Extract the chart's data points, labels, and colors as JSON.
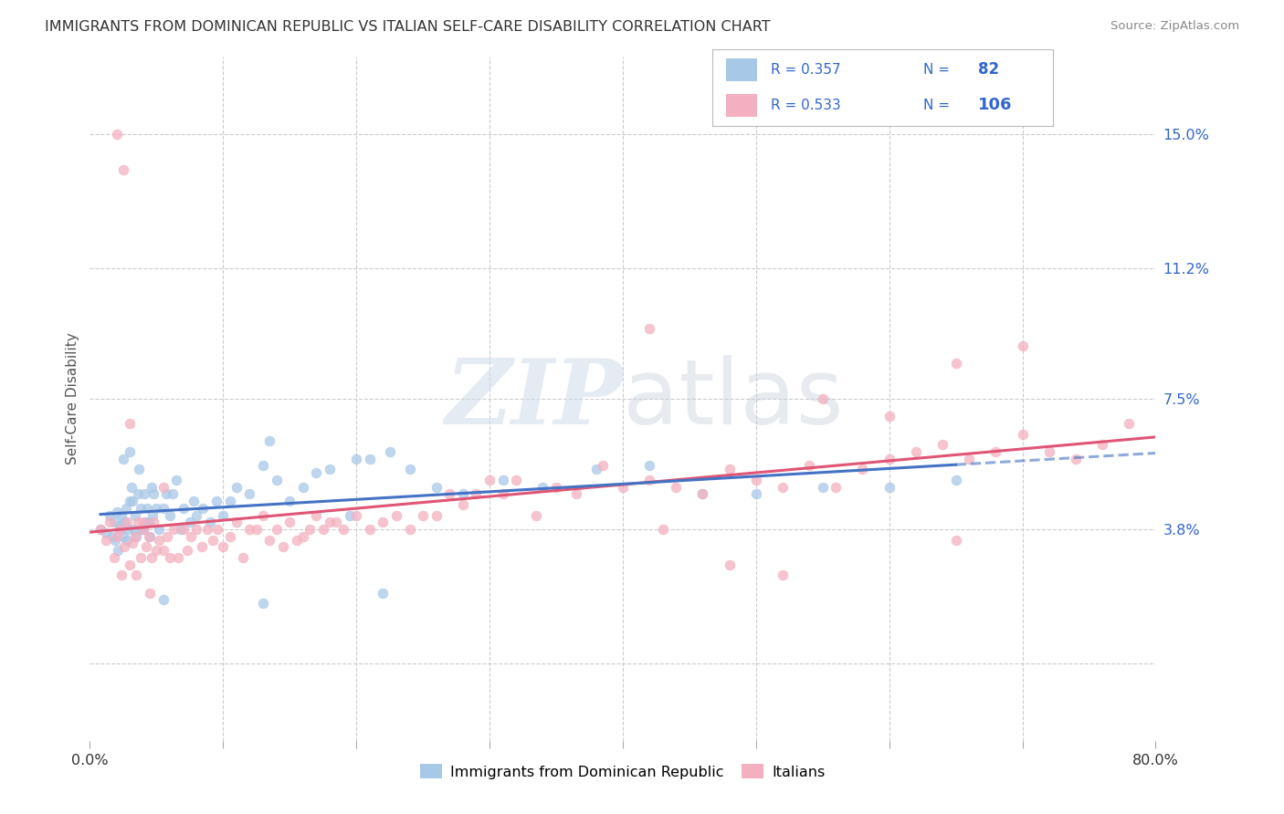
{
  "title": "IMMIGRANTS FROM DOMINICAN REPUBLIC VS ITALIAN SELF-CARE DISABILITY CORRELATION CHART",
  "source": "Source: ZipAtlas.com",
  "ylabel": "Self-Care Disability",
  "yticks": [
    0.0,
    0.038,
    0.075,
    0.112,
    0.15
  ],
  "ytick_labels": [
    "",
    "3.8%",
    "7.5%",
    "11.2%",
    "15.0%"
  ],
  "xlim": [
    0.0,
    0.8
  ],
  "ylim": [
    -0.022,
    0.172
  ],
  "legend_label1": "Immigrants from Dominican Republic",
  "legend_label2": "Italians",
  "R1": 0.357,
  "N1": 82,
  "R2": 0.533,
  "N2": 106,
  "color1": "#a8c8e8",
  "color2": "#f4b0c0",
  "line_color1": "#4472c4",
  "line_color2": "#e05575",
  "watermark_zip": "ZIP",
  "watermark_atlas": "atlas",
  "background": "#ffffff",
  "scatter1_x": [
    0.008,
    0.012,
    0.015,
    0.017,
    0.018,
    0.019,
    0.02,
    0.021,
    0.022,
    0.023,
    0.024,
    0.025,
    0.026,
    0.027,
    0.028,
    0.029,
    0.03,
    0.031,
    0.032,
    0.033,
    0.034,
    0.035,
    0.036,
    0.037,
    0.038,
    0.039,
    0.04,
    0.041,
    0.042,
    0.043,
    0.044,
    0.045,
    0.046,
    0.047,
    0.048,
    0.05,
    0.052,
    0.055,
    0.057,
    0.06,
    0.062,
    0.065,
    0.068,
    0.07,
    0.075,
    0.078,
    0.08,
    0.085,
    0.09,
    0.095,
    0.1,
    0.105,
    0.11,
    0.12,
    0.13,
    0.135,
    0.14,
    0.15,
    0.16,
    0.17,
    0.18,
    0.195,
    0.21,
    0.225,
    0.24,
    0.26,
    0.28,
    0.31,
    0.34,
    0.38,
    0.42,
    0.46,
    0.5,
    0.55,
    0.6,
    0.65,
    0.22,
    0.055,
    0.03,
    0.025,
    0.2,
    0.13
  ],
  "scatter1_y": [
    0.038,
    0.037,
    0.042,
    0.036,
    0.04,
    0.035,
    0.043,
    0.032,
    0.039,
    0.038,
    0.042,
    0.036,
    0.04,
    0.044,
    0.035,
    0.038,
    0.046,
    0.05,
    0.046,
    0.038,
    0.042,
    0.036,
    0.048,
    0.055,
    0.044,
    0.038,
    0.038,
    0.048,
    0.04,
    0.044,
    0.04,
    0.036,
    0.05,
    0.042,
    0.048,
    0.044,
    0.038,
    0.044,
    0.048,
    0.042,
    0.048,
    0.052,
    0.038,
    0.044,
    0.04,
    0.046,
    0.042,
    0.044,
    0.04,
    0.046,
    0.042,
    0.046,
    0.05,
    0.048,
    0.056,
    0.063,
    0.052,
    0.046,
    0.05,
    0.054,
    0.055,
    0.042,
    0.058,
    0.06,
    0.055,
    0.05,
    0.048,
    0.052,
    0.05,
    0.055,
    0.056,
    0.048,
    0.048,
    0.05,
    0.05,
    0.052,
    0.02,
    0.018,
    0.06,
    0.058,
    0.058,
    0.017
  ],
  "scatter2_x": [
    0.008,
    0.012,
    0.015,
    0.018,
    0.02,
    0.022,
    0.024,
    0.026,
    0.028,
    0.03,
    0.032,
    0.034,
    0.036,
    0.038,
    0.04,
    0.042,
    0.044,
    0.046,
    0.048,
    0.05,
    0.052,
    0.055,
    0.058,
    0.06,
    0.063,
    0.066,
    0.07,
    0.073,
    0.076,
    0.08,
    0.084,
    0.088,
    0.092,
    0.096,
    0.1,
    0.105,
    0.11,
    0.115,
    0.12,
    0.125,
    0.13,
    0.135,
    0.14,
    0.145,
    0.15,
    0.155,
    0.16,
    0.165,
    0.17,
    0.175,
    0.18,
    0.185,
    0.19,
    0.2,
    0.21,
    0.22,
    0.23,
    0.24,
    0.25,
    0.26,
    0.27,
    0.28,
    0.29,
    0.3,
    0.31,
    0.32,
    0.335,
    0.35,
    0.365,
    0.385,
    0.4,
    0.42,
    0.44,
    0.46,
    0.48,
    0.5,
    0.52,
    0.54,
    0.56,
    0.58,
    0.6,
    0.62,
    0.64,
    0.66,
    0.68,
    0.7,
    0.72,
    0.74,
    0.76,
    0.78,
    0.55,
    0.6,
    0.65,
    0.7,
    0.48,
    0.52,
    0.43,
    0.02,
    0.025,
    0.03,
    0.035,
    0.04,
    0.045,
    0.055,
    0.42,
    0.65
  ],
  "scatter2_y": [
    0.038,
    0.035,
    0.04,
    0.03,
    0.036,
    0.038,
    0.025,
    0.033,
    0.04,
    0.028,
    0.034,
    0.036,
    0.04,
    0.03,
    0.038,
    0.033,
    0.036,
    0.03,
    0.04,
    0.032,
    0.035,
    0.032,
    0.036,
    0.03,
    0.038,
    0.03,
    0.038,
    0.032,
    0.036,
    0.038,
    0.033,
    0.038,
    0.035,
    0.038,
    0.033,
    0.036,
    0.04,
    0.03,
    0.038,
    0.038,
    0.042,
    0.035,
    0.038,
    0.033,
    0.04,
    0.035,
    0.036,
    0.038,
    0.042,
    0.038,
    0.04,
    0.04,
    0.038,
    0.042,
    0.038,
    0.04,
    0.042,
    0.038,
    0.042,
    0.042,
    0.048,
    0.045,
    0.048,
    0.052,
    0.048,
    0.052,
    0.042,
    0.05,
    0.048,
    0.056,
    0.05,
    0.052,
    0.05,
    0.048,
    0.055,
    0.052,
    0.05,
    0.056,
    0.05,
    0.055,
    0.058,
    0.06,
    0.062,
    0.058,
    0.06,
    0.065,
    0.06,
    0.058,
    0.062,
    0.068,
    0.075,
    0.07,
    0.085,
    0.09,
    0.028,
    0.025,
    0.038,
    0.15,
    0.14,
    0.068,
    0.025,
    0.04,
    0.02,
    0.05,
    0.095,
    0.035
  ]
}
